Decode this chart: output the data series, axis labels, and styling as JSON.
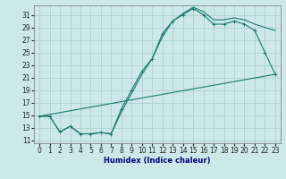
{
  "xlabel": "Humidex (Indice chaleur)",
  "line_color": "#1a7a6e",
  "bg_color": "#cce8e8",
  "grid_color": "#aacccc",
  "xlim": [
    -0.5,
    23.5
  ],
  "ylim": [
    10.5,
    32.5
  ],
  "yticks": [
    11,
    13,
    15,
    17,
    19,
    21,
    23,
    25,
    27,
    29,
    31
  ],
  "xticks": [
    0,
    1,
    2,
    3,
    4,
    5,
    6,
    7,
    8,
    9,
    10,
    11,
    12,
    13,
    14,
    15,
    16,
    17,
    18,
    19,
    20,
    21,
    22,
    23
  ],
  "curve1_x": [
    0,
    1,
    2,
    3,
    4,
    5,
    6,
    7,
    8,
    9,
    10,
    11,
    12,
    13,
    14,
    15,
    16,
    17,
    18,
    19,
    20,
    21,
    22,
    23
  ],
  "curve1_y": [
    14.8,
    14.8,
    12.3,
    13.2,
    12.0,
    12.0,
    12.2,
    12.0,
    16.0,
    19.0,
    22.0,
    24.0,
    28.0,
    30.0,
    31.0,
    32.0,
    31.0,
    29.5,
    29.5,
    30.0,
    29.5,
    28.5,
    25.0,
    21.5
  ],
  "curve2_x": [
    0,
    1,
    2,
    3,
    4,
    5,
    6,
    7,
    8,
    9,
    10,
    11,
    12,
    13,
    14,
    15,
    16,
    17,
    18,
    19,
    20,
    21,
    22,
    23
  ],
  "curve2_y": [
    14.8,
    14.8,
    12.3,
    13.2,
    12.0,
    12.0,
    12.2,
    12.0,
    15.5,
    18.5,
    21.5,
    24.0,
    27.5,
    30.0,
    31.2,
    32.2,
    31.5,
    30.2,
    30.2,
    30.5,
    30.2,
    29.5,
    29.0,
    28.5
  ],
  "curve3_x": [
    0,
    23
  ],
  "curve3_y": [
    14.8,
    21.5
  ],
  "tick_fontsize": 5.5,
  "xlabel_fontsize": 6,
  "xlabel_color": "#000080"
}
